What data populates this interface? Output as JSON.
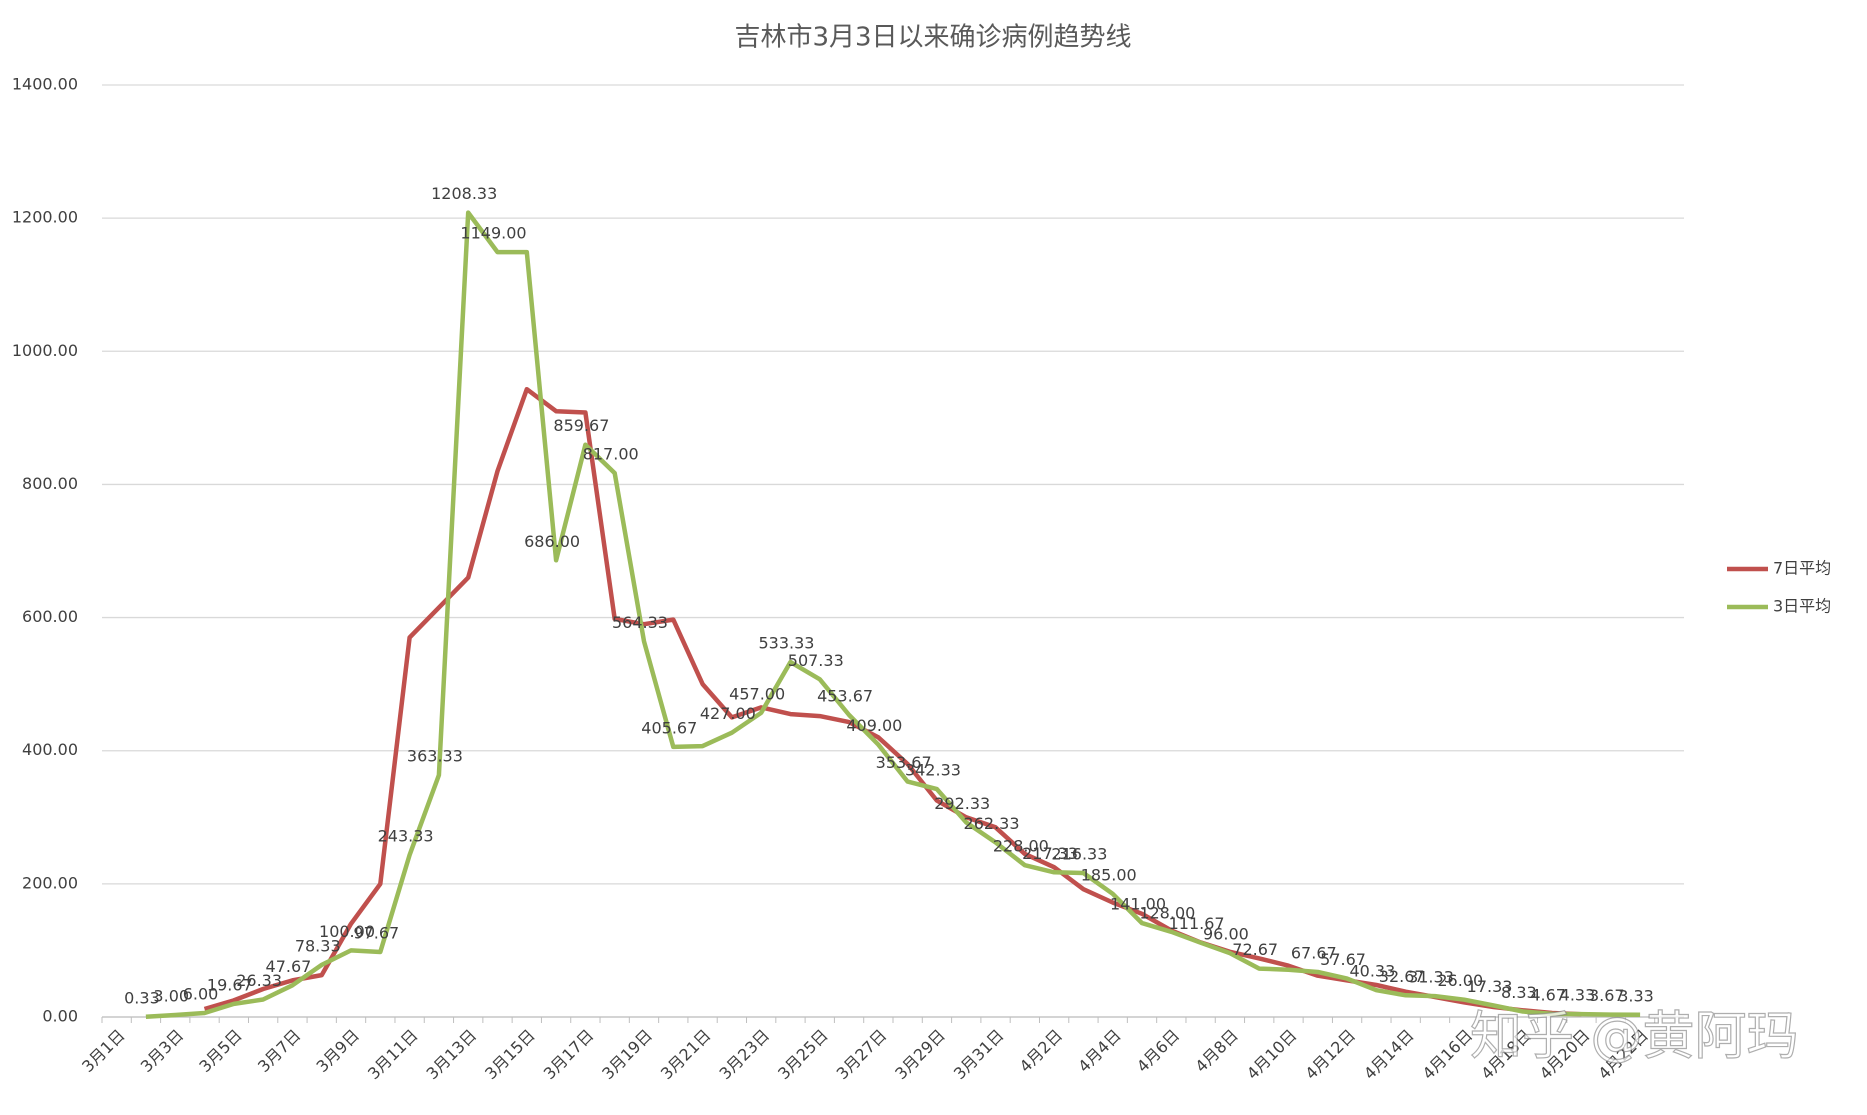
{
  "chart_data": {
    "type": "line",
    "title": "吉林市3月3日以来确诊病例趋势线",
    "categories": [
      "3月1日",
      null,
      "3月3日",
      null,
      "3月5日",
      null,
      "3月7日",
      null,
      "3月9日",
      null,
      "3月11日",
      null,
      "3月13日",
      null,
      "3月15日",
      null,
      "3月17日",
      null,
      "3月19日",
      null,
      "3月21日",
      null,
      "3月23日",
      null,
      "3月25日",
      null,
      "3月27日",
      null,
      "3月29日",
      null,
      "3月31日",
      null,
      "4月2日",
      null,
      "4月4日",
      null,
      "4月6日",
      null,
      "4月8日",
      null,
      "4月10日",
      null,
      "4月12日",
      null,
      "4月14日",
      null,
      "4月16日",
      null,
      "4月18日",
      null,
      "4月20日",
      null,
      "4月22日",
      null
    ],
    "series": [
      {
        "name": "7日平均",
        "color": "#c0504d",
        "values": [
          null,
          null,
          null,
          12,
          25,
          42,
          55,
          63,
          140,
          200,
          570,
          615,
          660,
          820,
          943,
          910,
          908,
          598,
          590,
          597,
          500,
          450,
          465,
          455,
          452,
          443,
          420,
          380,
          325,
          300,
          285,
          245,
          225,
          192,
          172,
          155,
          130,
          112,
          98,
          88,
          77,
          62,
          55,
          48,
          38,
          30,
          22,
          15,
          10,
          6,
          4,
          null,
          null,
          null
        ]
      },
      {
        "name": "3日平均",
        "color": "#9bbb59",
        "values": [
          null,
          0.33,
          3,
          6,
          19.67,
          26.33,
          47.67,
          78.33,
          100,
          97.67,
          243.33,
          363.33,
          1208.33,
          1149,
          1149,
          686,
          859.67,
          817,
          564.33,
          405.67,
          407,
          427,
          457,
          533.33,
          507.33,
          453.67,
          409,
          353.67,
          342.33,
          292.33,
          262.33,
          228,
          217.33,
          216.33,
          185,
          141,
          128,
          111.67,
          96,
          72.67,
          71,
          67.67,
          57.67,
          40.33,
          32.67,
          31.33,
          26,
          17.33,
          8.33,
          4.67,
          4.33,
          3.67,
          3.33,
          null
        ],
        "value_labels": [
          null,
          "0.33",
          "3.00",
          "6.00",
          "19.67",
          "26.33",
          "47.67",
          "78.33",
          "100.00",
          "97.67",
          "243.33",
          "363.33",
          "1208.33",
          "1149.00",
          null,
          "686.00",
          "859.67",
          "817.00",
          "564.33",
          "405.67",
          null,
          "427.00",
          "457.00",
          "533.33",
          "507.33",
          "453.67",
          "409.00",
          "353.67",
          "342.33",
          "292.33",
          "262.33",
          "228.00",
          "217.33",
          "216.33",
          "185.00",
          "141.00",
          "128.00",
          "111.67",
          "96.00",
          "72.67",
          null,
          "67.67",
          "57.67",
          "40.33",
          "32.67",
          "31.33",
          "26.00",
          "17.33",
          "8.33",
          "4.67",
          "4.33",
          "3.67",
          "3.33",
          null
        ]
      }
    ],
    "ylim": [
      0,
      1400
    ],
    "yticks": [
      {
        "value": 0,
        "label": "0.00"
      },
      {
        "value": 200,
        "label": "200.00"
      },
      {
        "value": 400,
        "label": "400.00"
      },
      {
        "value": 600,
        "label": "600.00"
      },
      {
        "value": 800,
        "label": "800.00"
      },
      {
        "value": 1000,
        "label": "1000.00"
      },
      {
        "value": 1200,
        "label": "1200.00"
      },
      {
        "value": 1400,
        "label": "1400.00"
      }
    ],
    "grid": true,
    "legend": "right"
  },
  "watermark": "知乎 @黄阿玛"
}
